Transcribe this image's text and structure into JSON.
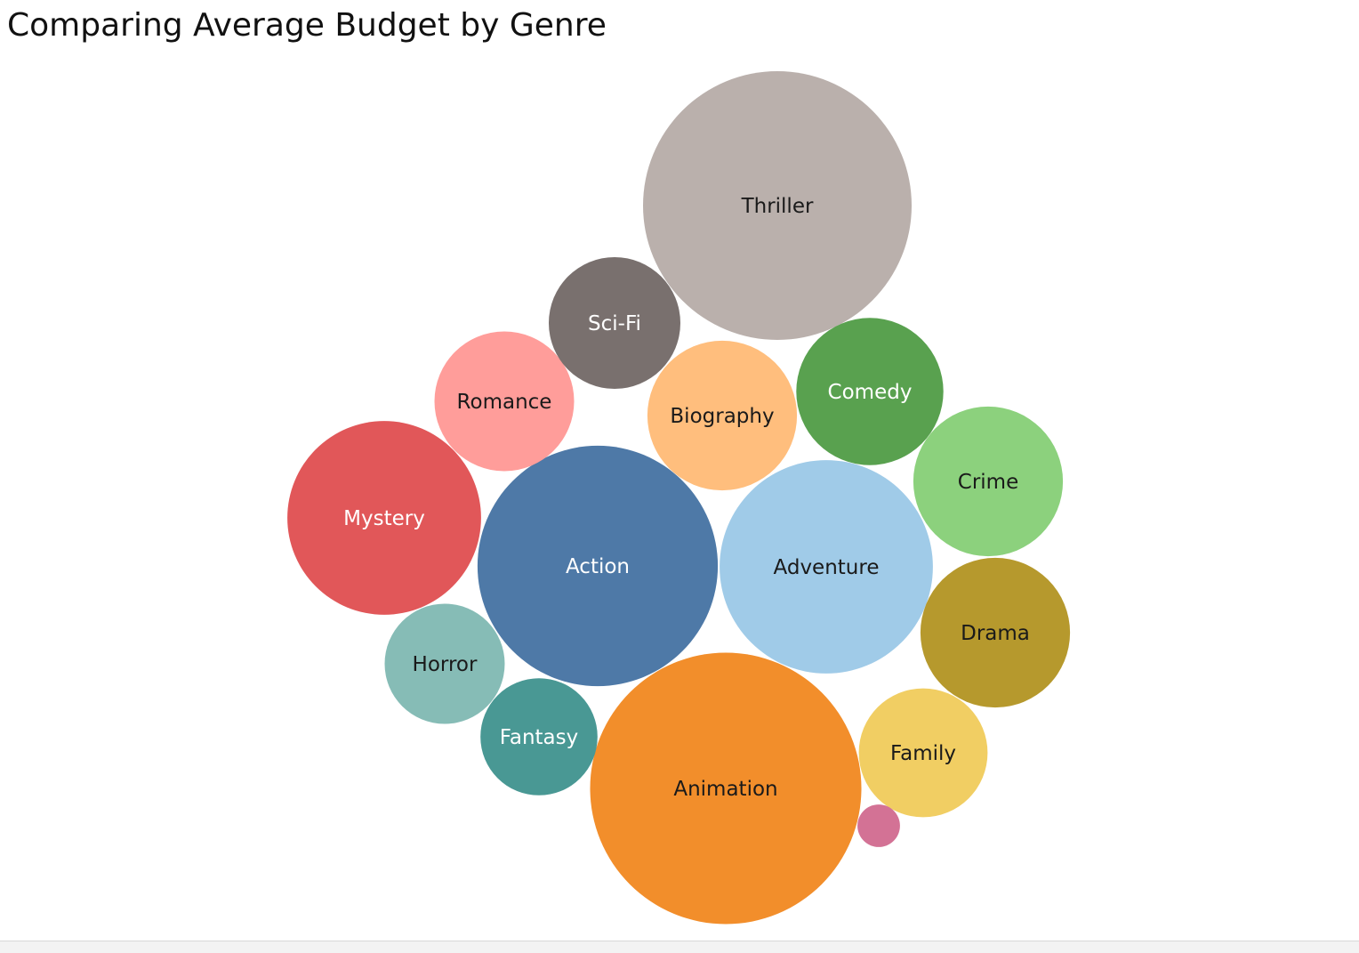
{
  "chart_data": {
    "type": "bubble",
    "title": "Comparing Average Budget by Genre",
    "bubbles": [
      {
        "label": "Thriller",
        "value": 100,
        "color": "#bab0ac",
        "text_color": "#1a1a1a"
      },
      {
        "label": "Animation",
        "value": 102,
        "color": "#f28e2b",
        "text_color": "#1a1a1a"
      },
      {
        "label": "Action",
        "value": 80,
        "color": "#4e79a7",
        "text_color": "#ffffff"
      },
      {
        "label": "Adventure",
        "value": 63,
        "color": "#a0cbe8",
        "text_color": "#1a1a1a"
      },
      {
        "label": "Mystery",
        "value": 52,
        "color": "#e15759",
        "text_color": "#ffffff"
      },
      {
        "label": "Biography",
        "value": 31,
        "color": "#ffbe7d",
        "text_color": "#1a1a1a"
      },
      {
        "label": "Drama",
        "value": 31,
        "color": "#b6992d",
        "text_color": "#1a1a1a"
      },
      {
        "label": "Crime",
        "value": 31,
        "color": "#8cd17d",
        "text_color": "#1a1a1a"
      },
      {
        "label": "Comedy",
        "value": 30,
        "color": "#59a14f",
        "text_color": "#ffffff"
      },
      {
        "label": "Romance",
        "value": 27,
        "color": "#ff9d9a",
        "text_color": "#1a1a1a"
      },
      {
        "label": "Sci-Fi",
        "value": 24,
        "color": "#79706e",
        "text_color": "#ffffff"
      },
      {
        "label": "Family",
        "value": 23,
        "color": "#f1ce63",
        "text_color": "#1a1a1a"
      },
      {
        "label": "Horror",
        "value": 20,
        "color": "#86bcb6",
        "text_color": "#1a1a1a"
      },
      {
        "label": "Fantasy",
        "value": 19,
        "color": "#499894",
        "text_color": "#ffffff"
      },
      {
        "label": "",
        "value": 2.5,
        "color": "#d37295",
        "text_color": "#ffffff"
      }
    ]
  }
}
